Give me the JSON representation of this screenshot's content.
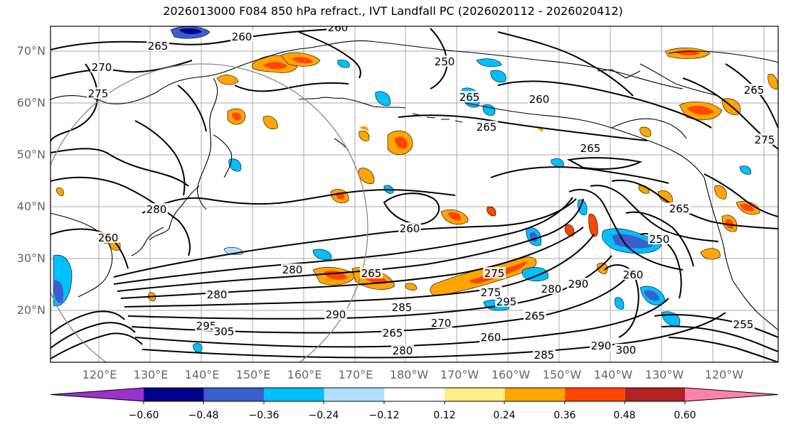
{
  "title": "2026013000 F084 850 hPa refract., IVT Landfall PC (2026020112 - 2026020412)",
  "lat_labels": [
    "70°N",
    "60°N",
    "50°N",
    "40°N",
    "30°N",
    "20°N"
  ],
  "lon_labels": [
    "120°E",
    "130°E",
    "140°E",
    "150°E",
    "160°E",
    "170°E",
    "180°W",
    "170°W",
    "160°W",
    "150°W",
    "140°W",
    "130°W",
    "120°W"
  ],
  "colorbar": {
    "ticks": [
      "−0.60",
      "−0.48",
      "−0.36",
      "−0.24",
      "−0.12",
      "0.12",
      "0.24",
      "0.36",
      "0.48",
      "0.60"
    ],
    "colors": [
      "#9932cc",
      "#00008b",
      "#3a5fcd",
      "#00bfff",
      "#b0e2ff",
      "#ffffff",
      "#ffec8b",
      "#ffa500",
      "#ff4500",
      "#b22222",
      "#ff82ab"
    ]
  },
  "contour_labels": [
    "265",
    "260",
    "270",
    "275",
    "260",
    "265",
    "260",
    "265",
    "260",
    "280",
    "265",
    "275",
    "280",
    "290",
    "285",
    "265",
    "270",
    "260",
    "295",
    "275",
    "265",
    "290",
    "280",
    "260",
    "250",
    "265",
    "280",
    "295",
    "305",
    "285",
    "290",
    "300",
    "280",
    "255",
    "260",
    "250",
    "265",
    "275",
    "265"
  ],
  "legend_colors": {
    "land_outline": "#000000",
    "grid": "#999999"
  }
}
